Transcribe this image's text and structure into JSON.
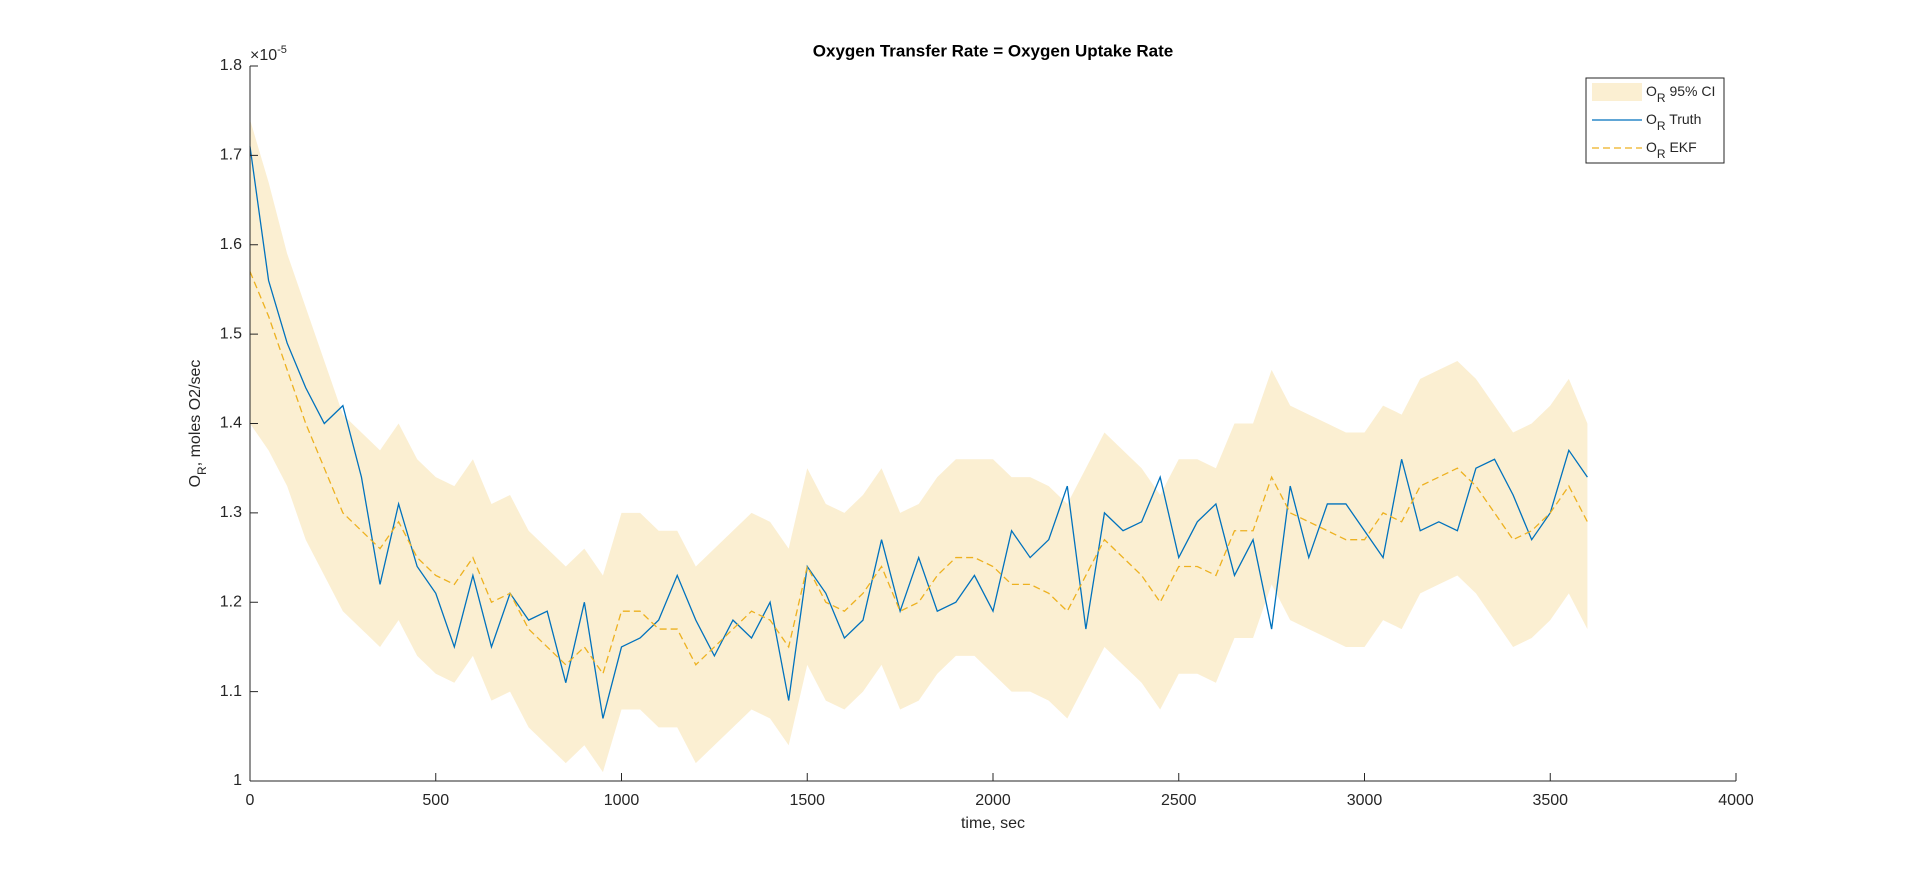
{
  "chart_data": {
    "type": "line",
    "title": "Oxygen Transfer Rate = Oxygen Uptake Rate",
    "xlabel": "time, sec",
    "ylabel": "O_R, moles O2/sec",
    "y_exponent_label": "×10^-5",
    "x": [
      0,
      50,
      100,
      150,
      200,
      250,
      300,
      350,
      400,
      450,
      500,
      550,
      600,
      650,
      700,
      750,
      800,
      850,
      900,
      950,
      1000,
      1050,
      1100,
      1150,
      1200,
      1250,
      1300,
      1350,
      1400,
      1450,
      1500,
      1550,
      1600,
      1650,
      1700,
      1750,
      1800,
      1850,
      1900,
      1950,
      2000,
      2050,
      2100,
      2150,
      2200,
      2250,
      2300,
      2350,
      2400,
      2450,
      2500,
      2550,
      2600,
      2650,
      2700,
      2750,
      2800,
      2850,
      2900,
      2950,
      3000,
      3050,
      3100,
      3150,
      3200,
      3250,
      3300,
      3350,
      3400,
      3450,
      3500,
      3550,
      3600
    ],
    "band": {
      "name": "O_R 95% CI",
      "color": "#fbefd2",
      "upper": [
        1.74,
        1.67,
        1.59,
        1.53,
        1.47,
        1.41,
        1.39,
        1.37,
        1.4,
        1.36,
        1.34,
        1.33,
        1.36,
        1.31,
        1.32,
        1.28,
        1.26,
        1.24,
        1.26,
        1.23,
        1.3,
        1.3,
        1.28,
        1.28,
        1.24,
        1.26,
        1.28,
        1.3,
        1.29,
        1.26,
        1.35,
        1.31,
        1.3,
        1.32,
        1.35,
        1.3,
        1.31,
        1.34,
        1.36,
        1.36,
        1.36,
        1.34,
        1.34,
        1.33,
        1.31,
        1.35,
        1.39,
        1.37,
        1.35,
        1.32,
        1.36,
        1.36,
        1.35,
        1.4,
        1.4,
        1.46,
        1.42,
        1.41,
        1.4,
        1.39,
        1.39,
        1.42,
        1.41,
        1.45,
        1.46,
        1.47,
        1.45,
        1.42,
        1.39,
        1.4,
        1.42,
        1.45,
        1.4
      ],
      "lower": [
        1.4,
        1.37,
        1.33,
        1.27,
        1.23,
        1.19,
        1.17,
        1.15,
        1.18,
        1.14,
        1.12,
        1.11,
        1.14,
        1.09,
        1.1,
        1.06,
        1.04,
        1.02,
        1.04,
        1.01,
        1.08,
        1.08,
        1.06,
        1.06,
        1.02,
        1.04,
        1.06,
        1.08,
        1.07,
        1.04,
        1.13,
        1.09,
        1.08,
        1.1,
        1.13,
        1.08,
        1.09,
        1.12,
        1.14,
        1.14,
        1.12,
        1.1,
        1.1,
        1.09,
        1.07,
        1.11,
        1.15,
        1.13,
        1.11,
        1.08,
        1.12,
        1.12,
        1.11,
        1.16,
        1.16,
        1.22,
        1.18,
        1.17,
        1.16,
        1.15,
        1.15,
        1.18,
        1.17,
        1.21,
        1.22,
        1.23,
        1.21,
        1.18,
        1.15,
        1.16,
        1.18,
        1.21,
        1.17
      ]
    },
    "series": [
      {
        "name": "O_R Truth",
        "color": "#0072bd",
        "dashed": false,
        "values": [
          1.71,
          1.56,
          1.49,
          1.44,
          1.4,
          1.42,
          1.34,
          1.22,
          1.31,
          1.24,
          1.21,
          1.15,
          1.23,
          1.15,
          1.21,
          1.18,
          1.19,
          1.11,
          1.2,
          1.07,
          1.15,
          1.16,
          1.18,
          1.23,
          1.18,
          1.14,
          1.18,
          1.16,
          1.2,
          1.09,
          1.24,
          1.21,
          1.16,
          1.18,
          1.27,
          1.19,
          1.25,
          1.19,
          1.2,
          1.23,
          1.19,
          1.28,
          1.25,
          1.27,
          1.33,
          1.17,
          1.3,
          1.28,
          1.29,
          1.34,
          1.25,
          1.29,
          1.31,
          1.23,
          1.27,
          1.17,
          1.33,
          1.25,
          1.31,
          1.31,
          1.28,
          1.25,
          1.36,
          1.28,
          1.29,
          1.28,
          1.35,
          1.36,
          1.32,
          1.27,
          1.3,
          1.37,
          1.34
        ]
      },
      {
        "name": "O_R EKF",
        "color": "#edb120",
        "dashed": true,
        "values": [
          1.57,
          1.52,
          1.46,
          1.4,
          1.35,
          1.3,
          1.28,
          1.26,
          1.29,
          1.25,
          1.23,
          1.22,
          1.25,
          1.2,
          1.21,
          1.17,
          1.15,
          1.13,
          1.15,
          1.12,
          1.19,
          1.19,
          1.17,
          1.17,
          1.13,
          1.15,
          1.17,
          1.19,
          1.18,
          1.15,
          1.24,
          1.2,
          1.19,
          1.21,
          1.24,
          1.19,
          1.2,
          1.23,
          1.25,
          1.25,
          1.24,
          1.22,
          1.22,
          1.21,
          1.19,
          1.23,
          1.27,
          1.25,
          1.23,
          1.2,
          1.24,
          1.24,
          1.23,
          1.28,
          1.28,
          1.34,
          1.3,
          1.29,
          1.28,
          1.27,
          1.27,
          1.3,
          1.29,
          1.33,
          1.34,
          1.35,
          1.33,
          1.3,
          1.27,
          1.28,
          1.3,
          1.33,
          1.29
        ]
      }
    ],
    "xlim": [
      0,
      4000
    ],
    "xticks": [
      0,
      500,
      1000,
      1500,
      2000,
      2500,
      3000,
      3500,
      4000
    ],
    "ylim": [
      1,
      1.8
    ],
    "yticks": [
      1,
      1.1,
      1.2,
      1.3,
      1.4,
      1.5,
      1.6,
      1.7,
      1.8
    ],
    "grid": false,
    "legend": "northeast"
  }
}
